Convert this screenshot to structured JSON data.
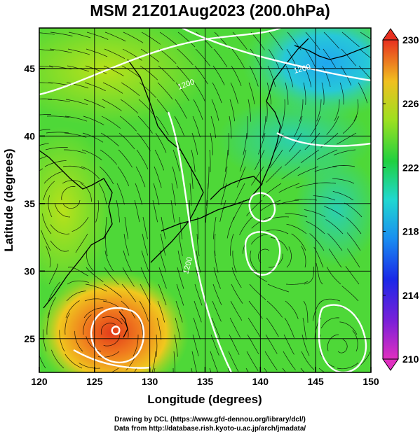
{
  "title": "MSM 21Z01Aug2023 (200.0hPa)",
  "axes": {
    "xlabel": "Longitude (degrees)",
    "ylabel": "Latitude  (degrees)",
    "xlim": [
      120,
      150
    ],
    "ylim": [
      22.5,
      48
    ],
    "xticks": [
      120,
      125,
      130,
      135,
      140,
      145,
      150
    ],
    "yticks": [
      25,
      30,
      35,
      40,
      45
    ]
  },
  "colorbar": {
    "min": 210,
    "max": 230,
    "labels": [
      "230",
      "226",
      "222",
      "218",
      "214",
      "210"
    ]
  },
  "contours": {
    "labels": [
      "1200",
      "1200",
      "1200"
    ]
  },
  "credit": {
    "line1": "Drawing by DCL (https://www.gfd-dennou.org/library/dcl/)",
    "line2": "Data from http://database.rish.kyoto-u.ac.jp/arch/jmadata/"
  },
  "chart_data": {
    "type": "heatmap",
    "title": "MSM 21Z01Aug2023 (200.0hPa)",
    "xlabel": "Longitude (degrees)",
    "ylabel": "Latitude  (degrees)",
    "xlim": [
      120,
      150
    ],
    "ylim": [
      22.5,
      48
    ],
    "colorbar_range": [
      210,
      230
    ],
    "colorbar_ticks": [
      210,
      214,
      218,
      222,
      226,
      230
    ],
    "grid": true,
    "features": [
      {
        "kind": "warm-core high",
        "lon": 127,
        "lat": 25.5,
        "value": 228
      },
      {
        "kind": "cool region",
        "lon": 145,
        "lat": 46,
        "value": 218
      },
      {
        "kind": "closed circulation",
        "lon": 140,
        "lat": 31.5
      },
      {
        "kind": "closed circulation",
        "lon": 147,
        "lat": 24
      }
    ]
  }
}
